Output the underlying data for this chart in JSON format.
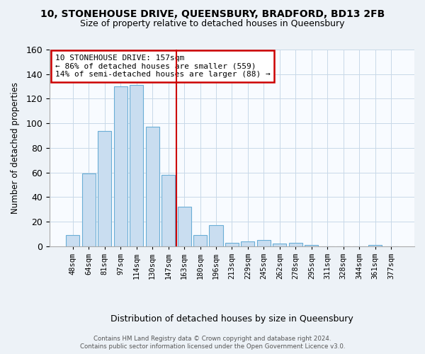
{
  "title1": "10, STONEHOUSE DRIVE, QUEENSBURY, BRADFORD, BD13 2FB",
  "title2": "Size of property relative to detached houses in Queensbury",
  "xlabel": "Distribution of detached houses by size in Queensbury",
  "ylabel": "Number of detached properties",
  "bar_labels": [
    "48sqm",
    "64sqm",
    "81sqm",
    "97sqm",
    "114sqm",
    "130sqm",
    "147sqm",
    "163sqm",
    "180sqm",
    "196sqm",
    "213sqm",
    "229sqm",
    "245sqm",
    "262sqm",
    "278sqm",
    "295sqm",
    "311sqm",
    "328sqm",
    "344sqm",
    "361sqm",
    "377sqm"
  ],
  "bar_values": [
    9,
    59,
    94,
    130,
    131,
    97,
    58,
    32,
    9,
    17,
    3,
    4,
    5,
    2,
    3,
    1,
    0,
    0,
    0,
    1,
    0
  ],
  "bar_color": "#c9ddf0",
  "bar_edge_color": "#6aaed6",
  "vline_color": "#cc0000",
  "vline_pos": 6.5,
  "annotation_title": "10 STONEHOUSE DRIVE: 157sqm",
  "annotation_line1": "← 86% of detached houses are smaller (559)",
  "annotation_line2": "14% of semi-detached houses are larger (88) →",
  "ylim": [
    0,
    160
  ],
  "yticks": [
    0,
    20,
    40,
    60,
    80,
    100,
    120,
    140,
    160
  ],
  "background_color": "#edf2f7",
  "plot_bg_color": "#f8fbff",
  "grid_color": "#c8d8e8",
  "footer1": "Contains HM Land Registry data © Crown copyright and database right 2024.",
  "footer2": "Contains public sector information licensed under the Open Government Licence v3.0."
}
